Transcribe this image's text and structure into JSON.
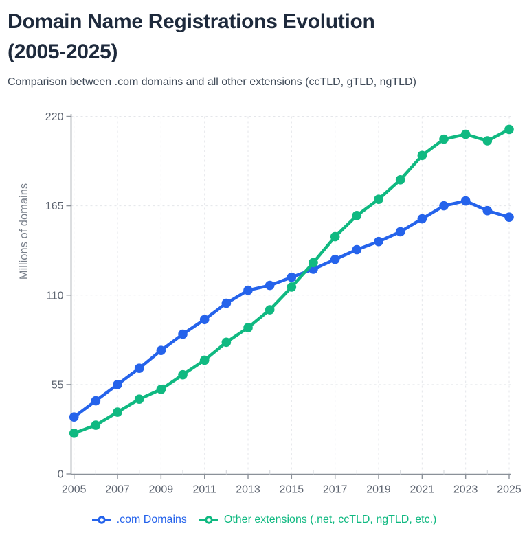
{
  "header": {
    "title_line1": "Domain Name Registrations Evolution",
    "title_line2": "(2005-2025)",
    "subtitle": "Comparison between .com domains and all other extensions (ccTLD, gTLD, ngTLD)"
  },
  "chart_data": {
    "type": "line",
    "title": "Domain Name Registrations Evolution (2005-2025)",
    "xlabel": "",
    "ylabel": "Millions of domains",
    "x": [
      2005,
      2006,
      2007,
      2008,
      2009,
      2010,
      2011,
      2012,
      2013,
      2014,
      2015,
      2016,
      2017,
      2018,
      2019,
      2020,
      2021,
      2022,
      2023,
      2024,
      2025
    ],
    "series": [
      {
        "name": ".com Domains",
        "color": "#2563eb",
        "values": [
          35,
          45,
          55,
          65,
          76,
          86,
          95,
          105,
          113,
          116,
          121,
          126,
          132,
          138,
          143,
          149,
          157,
          165,
          168,
          162,
          158
        ]
      },
      {
        "name": "Other extensions (.net, ccTLD, ngTLD, etc.)",
        "color": "#10b981",
        "values": [
          25,
          30,
          38,
          46,
          52,
          61,
          70,
          81,
          90,
          101,
          115,
          130,
          146,
          159,
          169,
          181,
          196,
          206,
          209,
          205,
          212
        ]
      }
    ],
    "ylim": [
      0,
      220
    ],
    "y_ticks": [
      0,
      55,
      110,
      165,
      220
    ],
    "x_ticks": [
      2005,
      2007,
      2009,
      2011,
      2013,
      2015,
      2017,
      2019,
      2021,
      2023,
      2025
    ],
    "grid": true,
    "grid_style": "dashed",
    "legend_position": "bottom",
    "marker": "circle",
    "background": "#ffffff"
  }
}
